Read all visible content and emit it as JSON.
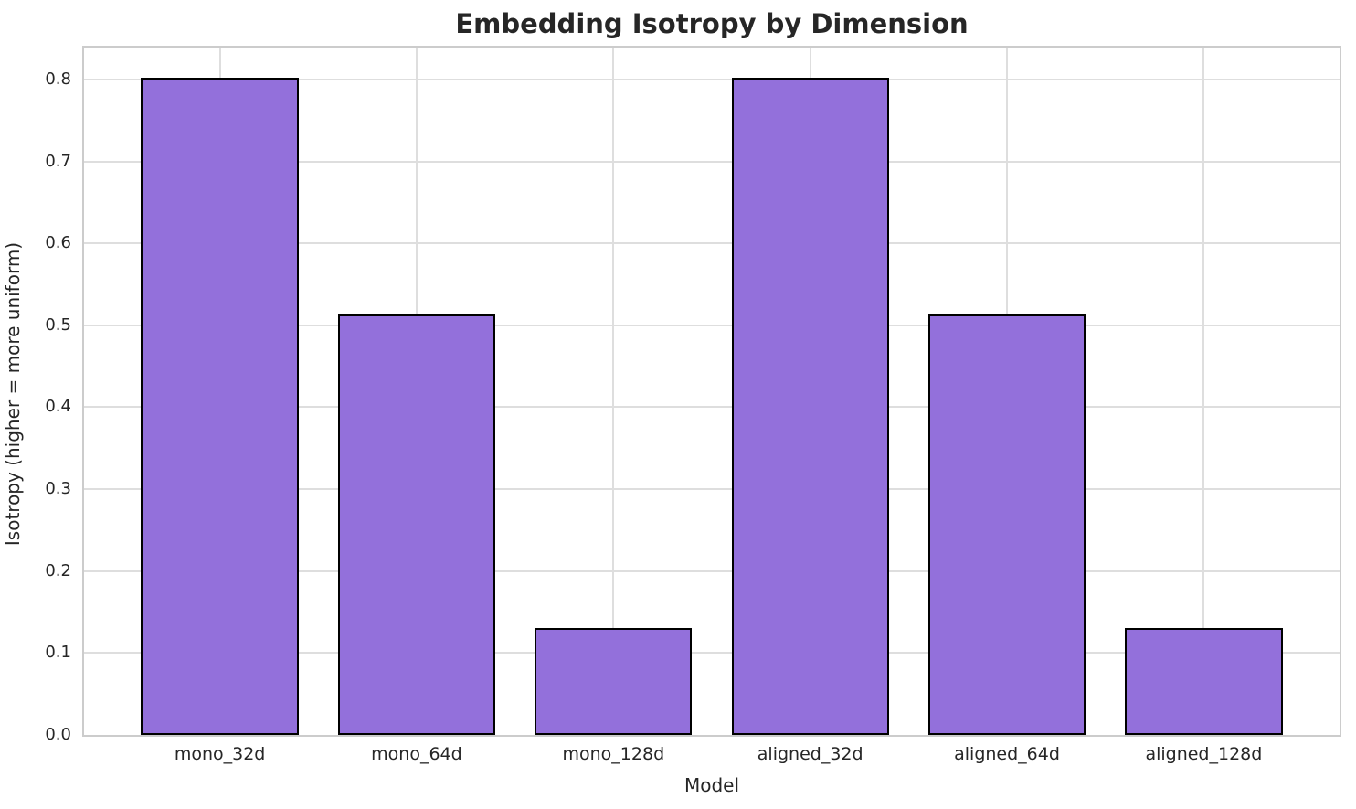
{
  "chart_data": {
    "type": "bar",
    "title": "Embedding Isotropy by Dimension",
    "xlabel": "Model",
    "ylabel": "Isotropy (higher = more uniform)",
    "categories": [
      "mono_32d",
      "mono_64d",
      "mono_128d",
      "aligned_32d",
      "aligned_64d",
      "aligned_128d"
    ],
    "values": [
      0.802,
      0.513,
      0.131,
      0.802,
      0.513,
      0.131
    ],
    "ylim": [
      0,
      0.839
    ],
    "yticks": [
      0.0,
      0.1,
      0.2,
      0.3,
      0.4,
      0.5,
      0.6,
      0.7,
      0.8
    ],
    "ytick_labels": [
      "0.0",
      "0.1",
      "0.2",
      "0.3",
      "0.4",
      "0.5",
      "0.6",
      "0.7",
      "0.8"
    ],
    "grid": true,
    "legend": false,
    "colors": {
      "bar_fill": "#9370DB",
      "bar_edge": "#000000",
      "grid_line": "#dedede",
      "spine": "#cccccc",
      "text": "#262626",
      "background": "#ffffff"
    }
  }
}
